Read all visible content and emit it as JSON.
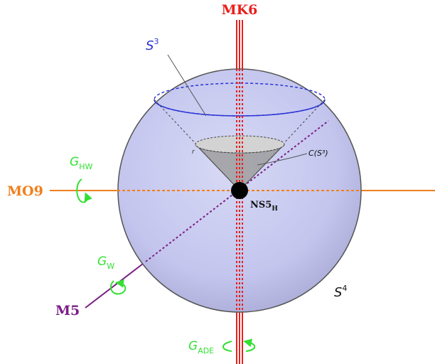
{
  "labels": {
    "mk6": "MK6",
    "mo9": "MO9",
    "m5": "M5",
    "s3": {
      "base": "S",
      "sup": "3"
    },
    "s4": {
      "base": "S",
      "sup": "4"
    },
    "cone": "C(S³)",
    "ns5": {
      "base": "NS5",
      "sub": "H"
    },
    "g_hw": {
      "base": "G",
      "sub": "HW"
    },
    "g_w": {
      "base": "G",
      "sub": "W"
    },
    "g_ade": {
      "base": "G",
      "sub": "ADE"
    },
    "r": "r"
  },
  "colors": {
    "mk6": "#e8201c",
    "mo9": "#f07f1d",
    "m5": "#7a1f86",
    "s3": "#2b33d6",
    "group_arrows": "#33e033",
    "sphere_fill": "#c3c5ee",
    "cone": "#9a9a9a"
  }
}
